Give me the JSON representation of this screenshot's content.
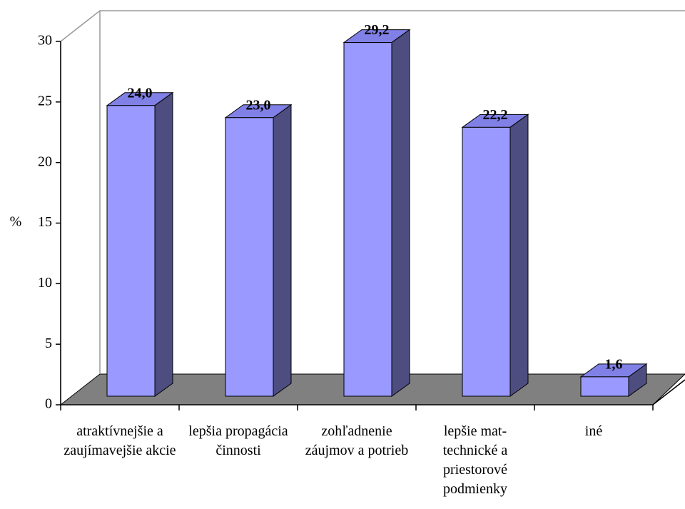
{
  "chart_data": {
    "type": "bar3d",
    "categories": [
      "atraktívnejšie a zaujímavejšie akcie",
      "lepšia propagácia činnosti",
      "zohľadnenie záujmov a potrieb",
      "lepšie mat-technické a priestorové podmienky",
      "iné"
    ],
    "values": [
      24.0,
      23.0,
      29.2,
      22.2,
      1.6
    ],
    "value_labels": [
      "24,0",
      "23,0",
      "29,2",
      "22,2",
      "1,6"
    ],
    "color": "#9999ff",
    "y_label": "%",
    "ylim": [
      0,
      30
    ],
    "yticks": [
      0,
      5,
      10,
      15,
      20,
      25,
      30
    ]
  }
}
